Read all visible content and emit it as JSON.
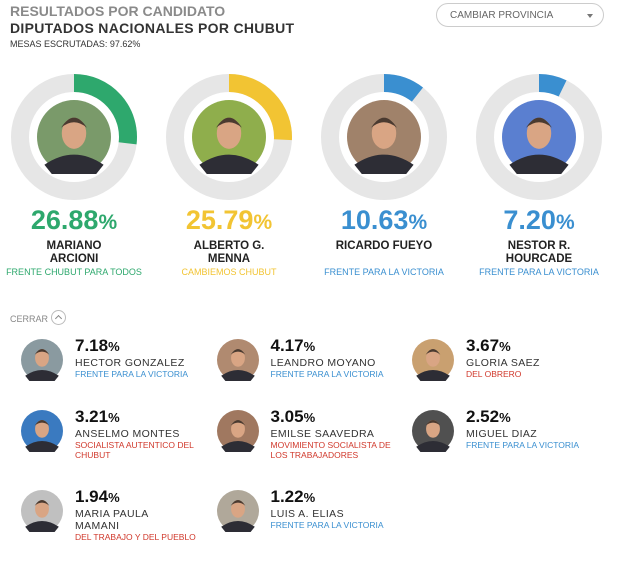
{
  "header": {
    "title": "RESULTADOS POR CANDIDATO",
    "subtitle": "DIPUTADOS NACIONALES POR CHUBUT",
    "mesas": "MESAS ESCRUTADAS: 97.62%"
  },
  "dropdown": "CAMBIAR PROVINCIA",
  "toggle": "CERRAR",
  "top_candidates": [
    {
      "name": "MARIANO ARCIONI",
      "party": "FRENTE CHUBUT PARA TODOS",
      "share": 26.88,
      "unit": "%",
      "color": "#2ea86d"
    },
    {
      "name": "ALBERTO G. MENNA",
      "party": "CAMBIEMOS CHUBUT",
      "share": 25.79,
      "unit": "%",
      "color": "#f2c433"
    },
    {
      "name": "RICARDO FUEYO",
      "party": "FRENTE PARA LA VICTORIA",
      "share": 10.63,
      "unit": "%",
      "color": "#3a8fd0"
    },
    {
      "name": "NESTOR R. HOURCADE",
      "party": "FRENTE PARA LA VICTORIA",
      "share": {
        "value": 7.2,
        "label": "7.20"
      },
      "unit": "%",
      "color": "#3a8fd0"
    }
  ],
  "other_candidates": [
    {
      "name": "HECTOR GONZALEZ",
      "party": "FRENTE PARA LA VICTORIA",
      "share": 7.18,
      "unit": "%",
      "color": "#3a8fd0"
    },
    {
      "name": "LEANDRO MOYANO",
      "party": "FRENTE PARA LA VICTORIA",
      "share": 4.17,
      "unit": "%",
      "color": "#3a8fd0"
    },
    {
      "name": "GLORIA SAEZ",
      "party": "DEL OBRERO",
      "share": 3.67,
      "unit": "%",
      "color": "#d0382b"
    },
    {
      "name": "ANSELMO MONTES",
      "party": "SOCIALISTA AUTENTICO DEL CHUBUT",
      "share": 3.21,
      "unit": "%",
      "color": "#d0382b"
    },
    {
      "name": "EMILSE SAAVEDRA",
      "party": "MOVIMIENTO SOCIALISTA DE LOS TRABAJADORES",
      "share": 3.05,
      "unit": "%",
      "color": "#d0382b"
    },
    {
      "name": "MIGUEL DIAZ",
      "party": "FRENTE PARA LA VICTORIA",
      "share": 2.52,
      "unit": "%",
      "color": "#3a8fd0"
    },
    {
      "name": "MARIA PAULA MAMANI",
      "party": "DEL TRABAJO Y DEL PUEBLO",
      "share": 1.94,
      "unit": "%",
      "color": "#d0382b"
    },
    {
      "name": "LUIS A. ELIAS",
      "party": "FRENTE PARA LA VICTORIA",
      "share": 1.22,
      "unit": "%",
      "color": "#3a8fd0"
    }
  ]
}
